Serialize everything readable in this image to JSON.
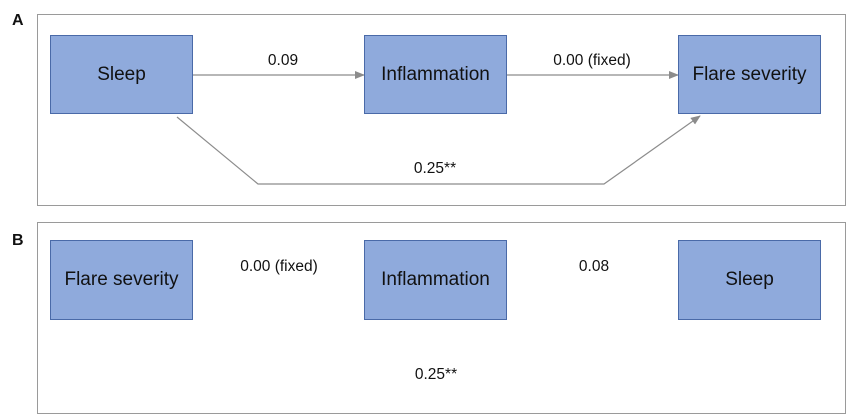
{
  "panels": [
    {
      "letter": "A",
      "nodes": {
        "left": "Sleep",
        "middle": "Inflammation",
        "right": "Flare severity"
      },
      "edges": {
        "left_to_middle": "0.09",
        "middle_to_right": "0.00 (fixed)",
        "left_to_right": "0.25**"
      }
    },
    {
      "letter": "B",
      "nodes": {
        "left": "Flare severity",
        "middle": "Inflammation",
        "right": "Sleep"
      },
      "edges": {
        "left_to_middle": "0.00 (fixed)",
        "middle_to_right": "0.08",
        "left_to_right": "0.25**"
      }
    }
  ],
  "colors": {
    "node_fill": "#8faadc",
    "node_border": "#4a6aa8",
    "arrow": "#8c8c8c",
    "frame": "#9a9a9a"
  }
}
